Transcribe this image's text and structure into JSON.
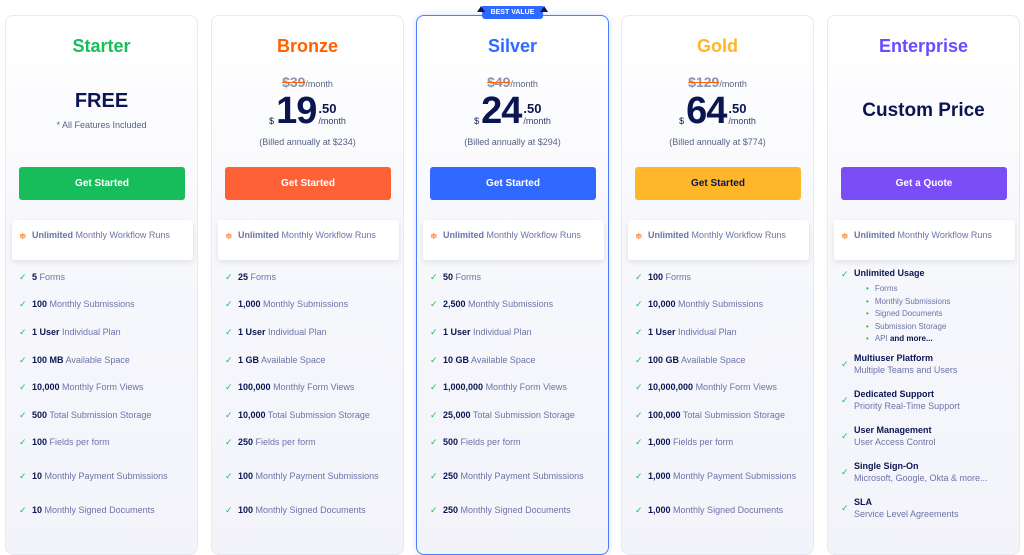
{
  "badge": "BEST VALUE",
  "highlight": {
    "bold": "Unlimited",
    "rest": " Monthly Workflow Runs"
  },
  "plans": [
    {
      "name": "Starter",
      "color": "#18bd5b",
      "free": "FREE",
      "note": "* All Features Included",
      "button": "Get Started",
      "button_text_color": "#ffffff",
      "features": [
        [
          "5",
          "Forms"
        ],
        [
          "100",
          "Monthly Submissions"
        ],
        [
          "1 User",
          "Individual Plan"
        ],
        [
          "100 MB",
          "Available Space"
        ],
        [
          "10,000",
          "Monthly Form Views"
        ],
        [
          "500",
          "Total Submission Storage"
        ],
        [
          "100",
          "Fields per form"
        ],
        [
          "10",
          "Monthly Payment Submissions"
        ],
        [
          "10",
          "Monthly Signed Documents"
        ]
      ]
    },
    {
      "name": "Bronze",
      "color": "#ff6100",
      "old_price": "$39",
      "per": "/month",
      "currency": "$",
      "price_int": "19",
      "price_dec": ".50",
      "billed": "(Billed annually at $234)",
      "button": "Get Started",
      "button_bg": "#ff6136",
      "button_text_color": "#ffffff",
      "features": [
        [
          "25",
          "Forms"
        ],
        [
          "1,000",
          "Monthly Submissions"
        ],
        [
          "1 User",
          "Individual Plan"
        ],
        [
          "1 GB",
          "Available Space"
        ],
        [
          "100,000",
          "Monthly Form Views"
        ],
        [
          "10,000",
          "Total Submission Storage"
        ],
        [
          "250",
          "Fields per form"
        ],
        [
          "100",
          "Monthly Payment Submissions"
        ],
        [
          "100",
          "Monthly Signed Documents"
        ]
      ]
    },
    {
      "name": "Silver",
      "color": "#3069ff",
      "featured": true,
      "old_price": "$49",
      "per": "/month",
      "currency": "$",
      "price_int": "24",
      "price_dec": ".50",
      "billed": "(Billed annually at $294)",
      "button": "Get Started",
      "button_text_color": "#ffffff",
      "features": [
        [
          "50",
          "Forms"
        ],
        [
          "2,500",
          "Monthly Submissions"
        ],
        [
          "1 User",
          "Individual Plan"
        ],
        [
          "10 GB",
          "Available Space"
        ],
        [
          "1,000,000",
          "Monthly Form Views"
        ],
        [
          "25,000",
          "Total Submission Storage"
        ],
        [
          "500",
          "Fields per form"
        ],
        [
          "250",
          "Monthly Payment Submissions"
        ],
        [
          "250",
          "Monthly Signed Documents"
        ]
      ]
    },
    {
      "name": "Gold",
      "color": "#ffb629",
      "old_price": "$129",
      "per": "/month",
      "currency": "$",
      "price_int": "64",
      "price_dec": ".50",
      "billed": "(Billed annually at $774)",
      "button": "Get Started",
      "button_text_color": "#0a1551",
      "features": [
        [
          "100",
          "Forms"
        ],
        [
          "10,000",
          "Monthly Submissions"
        ],
        [
          "1 User",
          "Individual Plan"
        ],
        [
          "100 GB",
          "Available Space"
        ],
        [
          "10,000,000",
          "Monthly Form Views"
        ],
        [
          "100,000",
          "Total Submission Storage"
        ],
        [
          "1,000",
          "Fields per form"
        ],
        [
          "1,000",
          "Monthly Payment Submissions"
        ],
        [
          "1,000",
          "Monthly Signed Documents"
        ]
      ]
    },
    {
      "name": "Enterprise",
      "color": "#6c4bff",
      "button_bg": "#7a4df7",
      "custom": "Custom Price",
      "button": "Get a Quote",
      "button_text_color": "#ffffff",
      "usage": {
        "title": "Unlimited Usage",
        "items": [
          "Forms",
          "Monthly Submissions",
          "Signed Documents",
          "Submission Storage"
        ],
        "last": "API",
        "last_bold": " and more..."
      },
      "features": [
        [
          "Multiuser Platform",
          "Multiple Teams and Users"
        ],
        [
          "Dedicated Support",
          "Priority Real-Time Support"
        ],
        [
          "User Management",
          "User Access Control"
        ],
        [
          "Single Sign-On",
          "Microsoft, Google, Okta & more..."
        ],
        [
          "SLA",
          "Service Level Agreements"
        ]
      ]
    }
  ]
}
